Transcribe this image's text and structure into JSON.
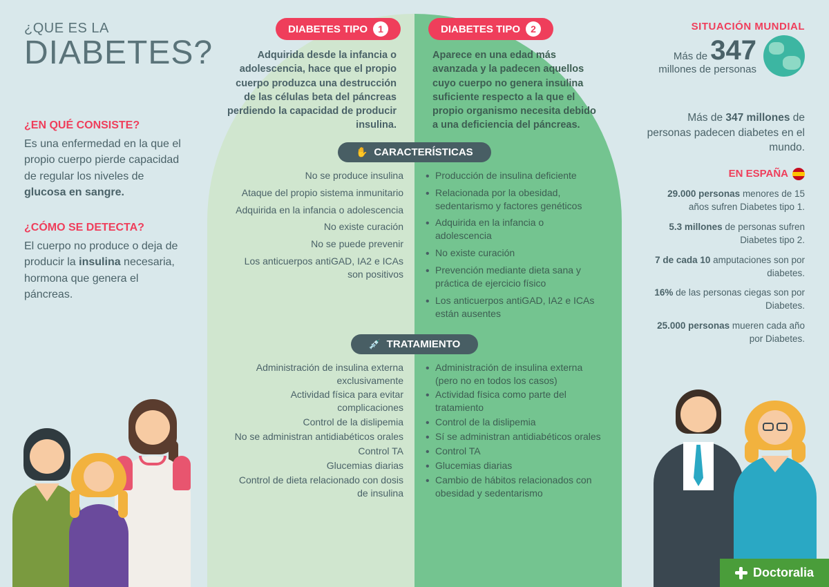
{
  "colors": {
    "background": "#d9e8eb",
    "arch_left": "#d0e6cf",
    "arch_right": "#74c490",
    "accent_red": "#ef3e5b",
    "text": "#4a6268",
    "dark_pill": "#485e64",
    "brand_green": "#4a9d3a",
    "globe": "#3cb6a2"
  },
  "title": {
    "small": "¿QUE ES LA",
    "big": "DIABETES?"
  },
  "left": {
    "q1": "¿EN QUÉ CONSISTE?",
    "a1_pre": "Es una enfermedad en la que el propio cuerpo pierde capacidad de regular los niveles de ",
    "a1_bold": "glucosa en sangre.",
    "q2": "¿CÓMO SE DETECTA?",
    "a2_pre": "El cuerpo no produce o deja de producir la ",
    "a2_bold": "insulina",
    "a2_post": " necesaria, hormona que genera el páncreas."
  },
  "world": {
    "label": "SITUACIÓN MUNDIAL",
    "pre": "Más de",
    "num": "347",
    "post": "millones de personas",
    "intro_a": "Más de ",
    "intro_b": "347 millones",
    "intro_c": " de personas padecen diabetes en el mundo.",
    "spain_label": "EN ESPAÑA",
    "stats": [
      {
        "b": "29.000 personas",
        "t": " menores de 15 años sufren Diabetes tipo 1."
      },
      {
        "b": "5.3 millones",
        "t": " de personas sufren Diabetes tipo 2."
      },
      {
        "b": "7 de cada 10",
        "t": " amputaciones son por diabetes."
      },
      {
        "b": "16%",
        "t": " de las personas ciegas son por Diabetes."
      },
      {
        "b": "25.000 personas",
        "t": " mueren cada año por Diabetes."
      }
    ]
  },
  "types": {
    "pill1": "DIABETES TIPO",
    "n1": "1",
    "pill2": "DIABETES TIPO",
    "n2": "2",
    "desc1": "Adquirida desde la infancia o adolescencia, hace que el propio cuerpo produzca una destrucción de las células beta del páncreas perdiendo la capacidad de producir insulina.",
    "desc2": "Aparece en una edad más avanzada y la padecen aquellos cuyo cuerpo no genera insulina suficiente respecto a la que el propio organismo necesita debido a una deficiencia del páncreas."
  },
  "caracteristicas": {
    "label": "CARACTERÍSTICAS",
    "left": [
      "No se produce insulina",
      "Ataque del propio sistema inmunitario",
      "Adquirida en la infancia o adolescencia",
      "No existe curación",
      "No se puede prevenir",
      "Los anticuerpos antiGAD, IA2 e ICAs son positivos"
    ],
    "right": [
      "Producción de insulina deficiente",
      "Relacionada por la obesidad, sedentarismo y factores genéticos",
      "Adquirida en la infancia o adolescencia",
      "No existe curación",
      "Prevención mediante dieta sana y práctica de ejercicio físico",
      "Los anticuerpos antiGAD, IA2 e ICAs están ausentes"
    ]
  },
  "tratamiento": {
    "label": "TRATAMIENTO",
    "left": [
      "Administración de insulina externa exclusivamente",
      "Actividad física para evitar complicaciones",
      "Control de la dislipemia",
      "No se administran antidiabéticos orales",
      "Control TA",
      "Glucemias diarias",
      "Control de dieta relacionado con dosis de insulina"
    ],
    "right": [
      "Administración de insulina externa (pero no en todos los casos)",
      "Actividad física como parte del tratamiento",
      "Control de la dislipemia",
      "Sí se administran antidiabéticos orales",
      "Control TA",
      "Glucemias diarias",
      "Cambio de hábitos relacionados con obesidad y sedentarismo"
    ]
  },
  "brand": "Doctoralia"
}
